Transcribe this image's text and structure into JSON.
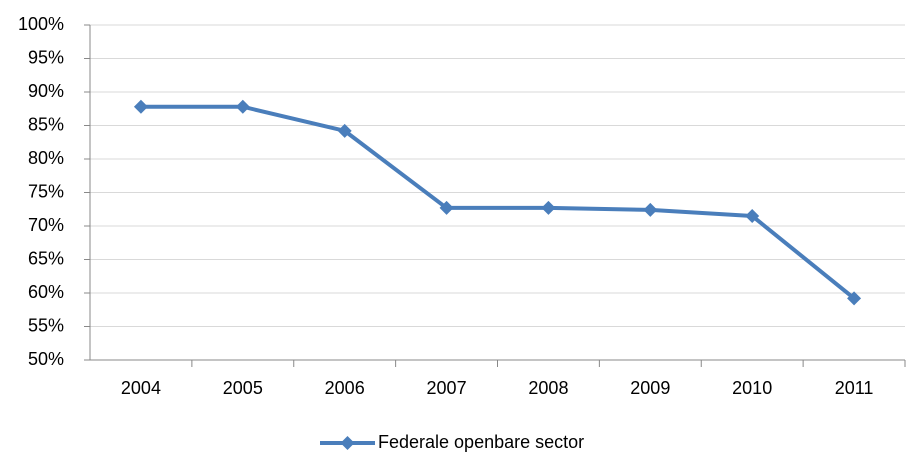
{
  "chart_data": {
    "type": "line",
    "categories": [
      "2004",
      "2005",
      "2006",
      "2007",
      "2008",
      "2009",
      "2010",
      "2011"
    ],
    "series": [
      {
        "name": "Federale openbare sector",
        "color": "#4a7ebb",
        "values": [
          87.8,
          87.8,
          84.2,
          72.7,
          72.7,
          72.4,
          71.5,
          59.2
        ]
      }
    ],
    "ylim": [
      50,
      100
    ],
    "yticks": [
      {
        "value": 50,
        "label": "50%"
      },
      {
        "value": 55,
        "label": "55%"
      },
      {
        "value": 60,
        "label": "60%"
      },
      {
        "value": 65,
        "label": "65%"
      },
      {
        "value": 70,
        "label": "70%"
      },
      {
        "value": 75,
        "label": "75%"
      },
      {
        "value": 80,
        "label": "80%"
      },
      {
        "value": 85,
        "label": "85%"
      },
      {
        "value": 90,
        "label": "90%"
      },
      {
        "value": 95,
        "label": "95%"
      },
      {
        "value": 100,
        "label": "100%"
      }
    ],
    "grid": true,
    "legend": "bottom"
  }
}
